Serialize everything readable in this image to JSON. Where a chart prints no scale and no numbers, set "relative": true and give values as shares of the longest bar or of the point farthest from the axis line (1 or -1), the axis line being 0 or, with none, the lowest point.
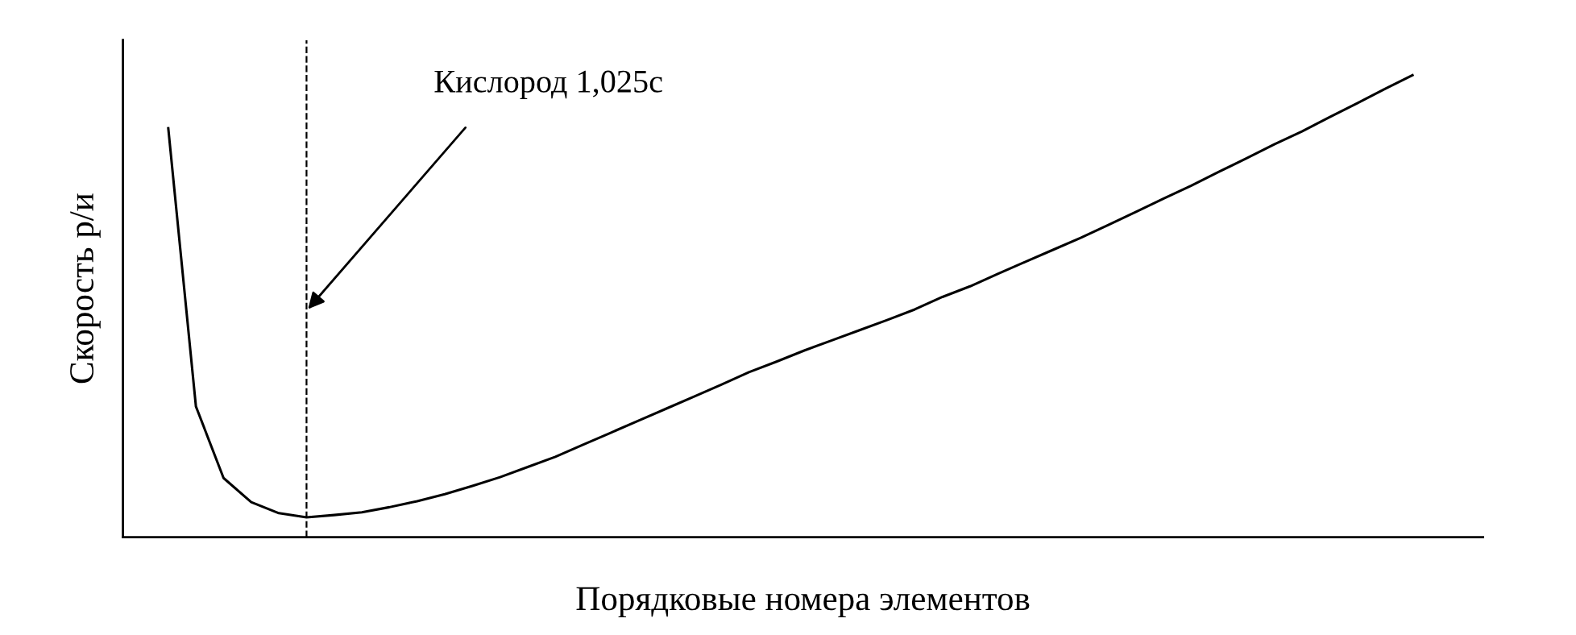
{
  "chart_data": {
    "type": "line",
    "relative": true,
    "xlabel": "Порядковые номера элементов",
    "ylabel": "Скорость р/и",
    "categories": [
      null,
      null,
      null,
      null,
      null,
      null,
      null,
      null,
      null,
      null,
      null,
      null,
      null,
      null,
      null,
      null,
      null,
      null,
      null,
      null,
      null,
      null,
      null,
      null,
      null,
      null,
      null,
      null,
      null,
      null,
      null,
      null,
      null,
      null,
      null,
      null,
      null,
      null,
      null,
      null,
      null,
      null,
      null,
      null,
      null,
      null
    ],
    "series": [
      {
        "color": "#000000",
        "values": [
          0.885,
          0.283,
          0.128,
          0.076,
          0.052,
          0.043,
          0.048,
          0.054,
          0.065,
          0.078,
          0.093,
          0.111,
          0.13,
          0.152,
          0.174,
          0.2,
          0.226,
          0.252,
          0.278,
          0.304,
          0.33,
          0.357,
          0.38,
          0.404,
          0.426,
          0.448,
          0.47,
          0.493,
          0.52,
          0.543,
          0.57,
          0.596,
          0.622,
          0.648,
          0.676,
          0.704,
          0.733,
          0.761,
          0.791,
          0.82,
          0.85,
          0.878,
          0.909,
          0.939,
          0.97,
          1
        ]
      }
    ],
    "annotations": [
      "Кислород 1,025с"
    ],
    "grid": false,
    "legend": false,
    "marker": "none",
    "line_style": "solid"
  }
}
